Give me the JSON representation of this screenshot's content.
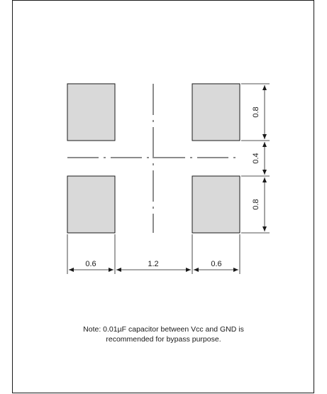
{
  "diagram": {
    "dimensions": {
      "pad_height_top": "0.8",
      "pad_gap_vertical": "0.4",
      "pad_height_bottom": "0.8",
      "pad_width_left": "0.6",
      "pad_gap_horizontal": "1.2",
      "pad_width_right": "0.6"
    },
    "note_line_1": "Note: 0.01µF capacitor between Vcc and GND is",
    "note_line_2": "recommended for bypass purpose."
  },
  "colors": {
    "pad_fill": "#d9d9d9",
    "line": "#1a1a1a"
  }
}
